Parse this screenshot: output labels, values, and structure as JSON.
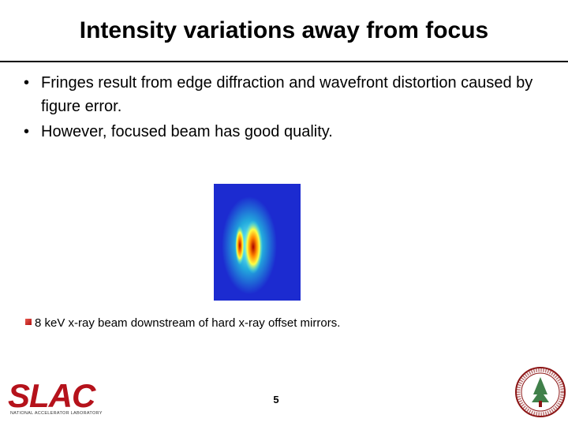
{
  "header": {
    "title": "Intensity variations away from focus"
  },
  "bullets": [
    "Fringes result from edge diffraction and wavefront distortion caused by figure error.",
    "However, focused beam has good quality."
  ],
  "figure": {
    "caption": "8 keV x-ray beam downstream of hard x-ray offset mirrors."
  },
  "footer": {
    "page_number": "5",
    "logo": {
      "name": "SLAC",
      "subtitle": "NATIONAL ACCELERATOR LABORATORY"
    }
  }
}
